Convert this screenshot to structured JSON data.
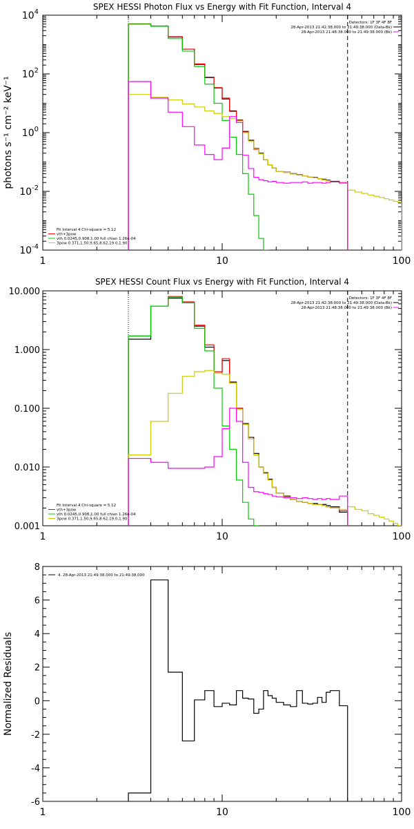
{
  "chart_data": [
    {
      "type": "line",
      "title": "SPEX HESSI Photon Flux vs Energy with Fit Function, Interval 4",
      "ylabel": "photons s⁻¹ cm⁻² keV⁻¹",
      "xlabel": "",
      "xscale": "log",
      "yscale": "log",
      "xlim": [
        1,
        100
      ],
      "ylim": [
        0.0001,
        10000
      ],
      "x_ticks": [
        1,
        10,
        100
      ],
      "x_tick_labels": [
        "1",
        "10",
        "100"
      ],
      "y_ticks": [
        0.0001,
        0.01,
        1,
        100,
        10000
      ],
      "y_tick_labels": [
        {
          "base": "10",
          "exp": "-4"
        },
        {
          "base": "10",
          "exp": "-2"
        },
        {
          "base": "10",
          "exp": "0"
        },
        {
          "base": "10",
          "exp": "2"
        },
        {
          "base": "10",
          "exp": "4"
        }
      ],
      "top_right_labels": [
        {
          "text": "Detectors: 1F 3F 4F 8F",
          "color": "#000000"
        },
        {
          "text": "28-Apr-2013 21:42:38.000 to 21:49:38.000 (Data-Bk)",
          "color": "#000000"
        },
        {
          "text": "28-Apr-2013 21:48:38.000 to 21:49:38.000 (Bk)",
          "color": "#ff00ff"
        }
      ],
      "legend": [
        {
          "text": "Fit Interval  4    Chi-square = 5.12",
          "color": "#000000"
        },
        {
          "text": "vth+3pow",
          "color": "#ff0000"
        },
        {
          "text": "vth 0.0245,0.908,1.00  full chian 1.26e-04",
          "color": "#00cc00"
        },
        {
          "text": "3pow 0.371,1.50,9.65,8.62,19.0,1.90",
          "color": "#cccc00"
        }
      ],
      "vlines": [
        {
          "x": 3,
          "style": "dotted",
          "color": "#000000"
        },
        {
          "x": 50,
          "style": "dashed",
          "color": "#000000"
        }
      ],
      "series": [
        {
          "style": "step",
          "color": "#000000",
          "edges": [
            3,
            4,
            5,
            6,
            7,
            8,
            9,
            10,
            11,
            12,
            13,
            14,
            15,
            16,
            17,
            18,
            19,
            20,
            22,
            24,
            26,
            28,
            30,
            32,
            34,
            36,
            38,
            40,
            45,
            50
          ],
          "values": [
            5000,
            4300,
            1800,
            700,
            210,
            75,
            33,
            14,
            5.5,
            2.7,
            1.1,
            0.55,
            0.29,
            0.2,
            0.12,
            0.08,
            0.062,
            0.048,
            0.045,
            0.04,
            0.037,
            0.033,
            0.031,
            0.03,
            0.027,
            0.026,
            0.024,
            0.022,
            0.019
          ]
        },
        {
          "style": "step",
          "color": "#ff0000",
          "edges": [
            3,
            4,
            5,
            6,
            7,
            8,
            9,
            10,
            11,
            12,
            13,
            14,
            15,
            16,
            17,
            18,
            19,
            20,
            22,
            24,
            26,
            28,
            30,
            32,
            34,
            36,
            38,
            40,
            45,
            50
          ],
          "values": [
            5100,
            4300,
            1850,
            700,
            220,
            78,
            34,
            15,
            5.3,
            2.6,
            1.05,
            0.52,
            0.27,
            0.19,
            0.12,
            0.08,
            0.062,
            0.048,
            0.044,
            0.039,
            0.036,
            0.033,
            0.031,
            0.029,
            0.027,
            0.025,
            0.023,
            0.021,
            0.019
          ]
        },
        {
          "style": "step",
          "color": "#00cc00",
          "edges": [
            3,
            4,
            5,
            6,
            7,
            8,
            9,
            10,
            11,
            12,
            13,
            14,
            15,
            16,
            17,
            18
          ],
          "values": [
            5000,
            4200,
            1600,
            600,
            180,
            45,
            10,
            2.6,
            0.7,
            0.18,
            0.04,
            0.008,
            0.0015,
            0.00025,
            0.0001
          ]
        },
        {
          "style": "step",
          "color": "#cccc00",
          "edges": [
            3,
            4,
            5,
            6,
            7,
            8,
            9,
            10,
            11,
            12,
            13,
            14,
            15,
            16,
            17,
            18,
            19,
            20,
            22,
            24,
            26,
            28,
            30,
            32,
            34,
            36,
            38,
            40,
            45,
            50,
            55,
            60,
            65,
            70,
            75,
            80,
            85,
            90,
            95,
            100
          ],
          "values": [
            20,
            16,
            13,
            9.5,
            7.5,
            5.5,
            4.5,
            3.5,
            3.0,
            2.5,
            1.0,
            0.52,
            0.28,
            0.19,
            0.12,
            0.08,
            0.062,
            0.048,
            0.044,
            0.039,
            0.036,
            0.033,
            0.031,
            0.029,
            0.027,
            0.025,
            0.023,
            0.021,
            0.019,
            0.011,
            0.0095,
            0.0085,
            0.0075,
            0.0068,
            0.0062,
            0.0056,
            0.0051,
            0.0046,
            0.0043
          ]
        },
        {
          "style": "step",
          "color": "#ff00ff",
          "edges": [
            3,
            4,
            5,
            6,
            7,
            8,
            9,
            10,
            11,
            12,
            13,
            14,
            15,
            16,
            17,
            18,
            19,
            20,
            22,
            24,
            26,
            28,
            30,
            32,
            34,
            36,
            38,
            40,
            45,
            50
          ],
          "values": [
            55,
            15,
            5,
            1.6,
            0.38,
            0.18,
            0.12,
            0.3,
            3.5,
            2.2,
            0.17,
            0.06,
            0.03,
            0.025,
            0.023,
            0.021,
            0.022,
            0.02,
            0.019,
            0.02,
            0.02,
            0.021,
            0.019,
            0.02,
            0.02,
            0.019,
            0.02,
            0.021,
            0.02
          ]
        }
      ]
    },
    {
      "type": "line",
      "title": "SPEX HESSI Count Flux vs Energy with Fit Function, Interval 4",
      "ylabel": "",
      "xlabel": "",
      "xscale": "log",
      "yscale": "log",
      "xlim": [
        1,
        100
      ],
      "ylim": [
        0.001,
        10
      ],
      "x_ticks": [
        1,
        10,
        100
      ],
      "x_tick_labels": [
        "1",
        "10",
        "100"
      ],
      "y_ticks": [
        0.001,
        0.01,
        0.1,
        1,
        10
      ],
      "y_tick_labels": [
        "0.001",
        "0.010",
        "0.100",
        "1.000",
        "10.000"
      ],
      "top_right_labels": [
        {
          "text": "Detectors: 1F 3F 4F 8F",
          "color": "#000000"
        },
        {
          "text": "28-Apr-2013 21:42:38.000 to 21:49:38.000 (Data-Bk)",
          "color": "#000000"
        },
        {
          "text": "28-Apr-2013 21:48:38.000 to 21:49:38.000 (Bk)",
          "color": "#ff00ff"
        }
      ],
      "legend": [
        {
          "text": "Fit Interval  4    Chi-square = 5.12",
          "color": "#000000"
        },
        {
          "text": "vth+3pow",
          "color": "#ff0000"
        },
        {
          "text": "vth 0.0245,0.908,1.00  full chian 1.26e-04",
          "color": "#00cc00"
        },
        {
          "text": "3pow 0.371,1.50,9.65,8.62,19.0,1.90",
          "color": "#cccc00"
        }
      ],
      "vlines": [
        {
          "x": 3,
          "style": "dotted",
          "color": "#000000"
        },
        {
          "x": 50,
          "style": "dashed",
          "color": "#000000"
        }
      ],
      "series": [
        {
          "style": "step",
          "color": "#000000",
          "edges": [
            3,
            4,
            5,
            6,
            7,
            8,
            9,
            10,
            11,
            12,
            13,
            14,
            15,
            16,
            17,
            18,
            19,
            20,
            22,
            24,
            26,
            28,
            30,
            32,
            34,
            36,
            38,
            40,
            45,
            50
          ],
          "values": [
            1.5,
            5.5,
            7.5,
            6.3,
            2.5,
            1.1,
            0.4,
            0.65,
            0.28,
            0.1,
            0.055,
            0.032,
            0.017,
            0.01,
            0.008,
            0.0062,
            0.0045,
            0.0036,
            0.0032,
            0.0028,
            0.0026,
            0.0025,
            0.0024,
            0.0024,
            0.0023,
            0.0023,
            0.0022,
            0.0021,
            0.0017
          ]
        },
        {
          "style": "step",
          "color": "#ff0000",
          "edges": [
            3,
            4,
            5,
            6,
            7,
            8,
            9,
            10,
            11,
            12,
            13,
            14,
            15,
            16,
            17,
            18,
            19,
            20,
            22,
            24,
            26,
            28,
            30,
            32,
            34,
            36,
            38,
            40,
            45,
            50
          ],
          "values": [
            1.7,
            5.5,
            8.0,
            6.5,
            2.6,
            1.2,
            0.42,
            0.7,
            0.27,
            0.1,
            0.053,
            0.03,
            0.016,
            0.01,
            0.0078,
            0.006,
            0.0045,
            0.0036,
            0.0031,
            0.0028,
            0.0026,
            0.0025,
            0.0024,
            0.0023,
            0.0023,
            0.0022,
            0.0021,
            0.002,
            0.0018
          ]
        },
        {
          "style": "step",
          "color": "#00cc00",
          "edges": [
            3,
            4,
            5,
            6,
            7,
            8,
            9,
            10,
            11,
            12,
            13,
            14,
            15,
            16
          ],
          "values": [
            1.7,
            5.5,
            7.8,
            6.4,
            2.3,
            0.95,
            0.22,
            0.05,
            0.02,
            0.006,
            0.0025,
            0.0013,
            0.001
          ]
        },
        {
          "style": "step",
          "color": "#cccc00",
          "edges": [
            3,
            4,
            5,
            6,
            7,
            8,
            9,
            10,
            11,
            12,
            13,
            14,
            15,
            16,
            17,
            18,
            19,
            20,
            22,
            24,
            26,
            28,
            30,
            32,
            34,
            36,
            38,
            40,
            45,
            50,
            55,
            60,
            65,
            70,
            75,
            80,
            85,
            90,
            95,
            100
          ],
          "values": [
            0.016,
            0.06,
            0.18,
            0.35,
            0.42,
            0.44,
            0.4,
            0.38,
            0.27,
            0.095,
            0.053,
            0.03,
            0.016,
            0.01,
            0.0078,
            0.006,
            0.0045,
            0.0036,
            0.0031,
            0.0028,
            0.0026,
            0.0025,
            0.0024,
            0.0023,
            0.0023,
            0.0022,
            0.0021,
            0.002,
            0.0019,
            0.0021,
            0.0019,
            0.0018,
            0.0016,
            0.0015,
            0.0014,
            0.0013,
            0.0012,
            0.0011,
            0.001
          ]
        },
        {
          "style": "step",
          "color": "#ff00ff",
          "edges": [
            3,
            4,
            5,
            6,
            7,
            8,
            9,
            10,
            11,
            12,
            13,
            14,
            15,
            16,
            17,
            18,
            19,
            20,
            22,
            24,
            26,
            28,
            30,
            32,
            34,
            36,
            38,
            40,
            45,
            50
          ],
          "values": [
            0.014,
            0.012,
            0.0095,
            0.0095,
            0.0095,
            0.01,
            0.015,
            0.045,
            0.1,
            0.06,
            0.012,
            0.0045,
            0.0038,
            0.0037,
            0.0035,
            0.0034,
            0.0032,
            0.0031,
            0.003,
            0.003,
            0.0029,
            0.003,
            0.0029,
            0.0028,
            0.0029,
            0.0028,
            0.0029,
            0.0028,
            0.0032
          ]
        }
      ]
    },
    {
      "type": "line",
      "title": "",
      "ylabel": "Normalized Residuals",
      "xlabel": "",
      "xscale": "log",
      "yscale": "linear",
      "xlim": [
        1,
        100
      ],
      "ylim": [
        -6,
        8
      ],
      "x_ticks": [
        1,
        10,
        100
      ],
      "x_tick_labels": [
        "1",
        "10",
        "100"
      ],
      "y_ticks": [
        -6,
        -4,
        -2,
        0,
        2,
        4,
        6,
        8
      ],
      "y_tick_labels": [
        "-6",
        "-4",
        "-2",
        "0",
        "2",
        "4",
        "6",
        "8"
      ],
      "legend": [
        {
          "text": "4. 28-Apr-2013 21:49:38.000 to 21:49:38.000",
          "color": "#000000"
        }
      ],
      "series": [
        {
          "style": "step",
          "color": "#000000",
          "edges": [
            3,
            4,
            5,
            6,
            7,
            8,
            9,
            10,
            11,
            12,
            13,
            14,
            15,
            16,
            17,
            18,
            19,
            20,
            22,
            24,
            26,
            28,
            30,
            32,
            34,
            36,
            38,
            40,
            45,
            50
          ],
          "values": [
            -5.5,
            7.2,
            1.7,
            -2.4,
            0.05,
            0.6,
            -0.35,
            -0.15,
            -0.25,
            0.6,
            0.15,
            0.1,
            -0.75,
            -0.5,
            0.6,
            0.3,
            0.15,
            -0.1,
            -0.25,
            -0.35,
            0.6,
            -0.15,
            -0.2,
            -0.15,
            0.2,
            -0.1,
            0.5,
            0.6,
            -0.3
          ]
        }
      ]
    }
  ]
}
